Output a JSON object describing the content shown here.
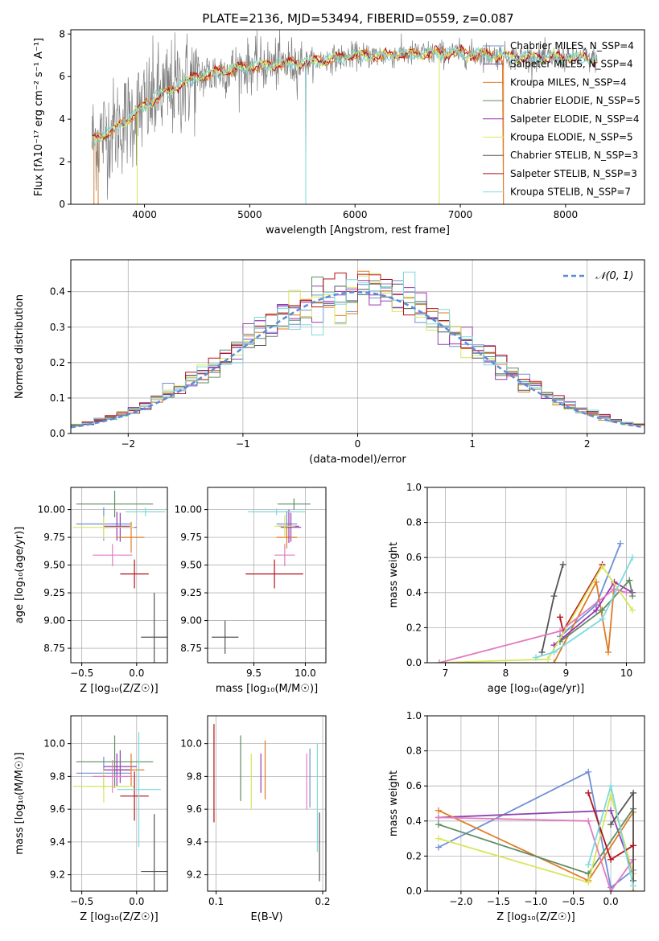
{
  "figure_title": "PLATE=2136, MJD=53494, FIBERID=0559, z=0.087",
  "colors": {
    "chabrier_miles": "#6f8fd6",
    "salpeter_miles": "#8e44ad",
    "kroupa_miles": "#e07b24",
    "chabrier_elodie": "#5e8c61",
    "salpeter_elodie": "#9b35b0",
    "kroupa_elodie": "#d8e65a",
    "chabrier_stelib": "#555555",
    "salpeter_stelib": "#b5121b",
    "kroupa_stelib": "#7fd9dd",
    "pink": "#e07cc0",
    "data_grey": "#808080",
    "normal_curve": "#5b8bd8"
  },
  "chart_data": [
    {
      "id": "spectrum",
      "type": "line",
      "xlabel": "wavelength [Angstrom, rest frame]",
      "ylabel": "Flux [fλ10⁻¹⁷ erg cm⁻² s⁻¹ A⁻¹]",
      "xlim": [
        3300,
        8750
      ],
      "ylim": [
        0,
        8.2
      ],
      "xticks": [
        4000,
        5000,
        6000,
        7000,
        8000
      ],
      "yticks": [
        0,
        2,
        4,
        6,
        8
      ],
      "legend_position": "right",
      "series": [
        {
          "name": "Chabrier MILES, N_SSP=4",
          "color_key": "chabrier_miles"
        },
        {
          "name": "Salpeter MILES, N_SSP=4",
          "color_key": "salpeter_miles"
        },
        {
          "name": "Kroupa MILES, N_SSP=4",
          "color_key": "kroupa_miles"
        },
        {
          "name": "Chabrier ELODIE, N_SSP=5",
          "color_key": "chabrier_elodie"
        },
        {
          "name": "Salpeter ELODIE, N_SSP=4",
          "color_key": "salpeter_elodie"
        },
        {
          "name": "Kroupa ELODIE, N_SSP=5",
          "color_key": "kroupa_elodie"
        },
        {
          "name": "Chabrier STELIB, N_SSP=3",
          "color_key": "chabrier_stelib"
        },
        {
          "name": "Salpeter STELIB, N_SSP=3",
          "color_key": "salpeter_stelib"
        },
        {
          "name": "Kroupa STELIB, N_SSP=7",
          "color_key": "kroupa_stelib"
        }
      ],
      "continuum": {
        "x": [
          3500,
          3700,
          3900,
          4000,
          4100,
          4300,
          4500,
          4800,
          5000,
          5300,
          5600,
          6000,
          6300,
          6700,
          7000,
          7300,
          7600,
          8000,
          8300
        ],
        "y": [
          3.0,
          3.5,
          4.2,
          4.6,
          5.0,
          5.5,
          6.0,
          6.3,
          6.5,
          6.6,
          6.7,
          7.0,
          7.0,
          7.1,
          7.1,
          7.0,
          6.9,
          6.9,
          6.8
        ]
      }
    },
    {
      "id": "residuals",
      "type": "area",
      "xlabel": "(data-model)/error",
      "ylabel": "Normed distribution",
      "xlim": [
        -2.5,
        2.5
      ],
      "ylim": [
        0,
        0.49
      ],
      "xticks": [
        -2,
        -1,
        0,
        1,
        2
      ],
      "yticks": [
        0.0,
        0.1,
        0.2,
        0.3,
        0.4
      ],
      "grid": true,
      "legend_position": "top-right",
      "reference_curve": "𝒩(0, 1)",
      "bin_width": 0.1
    },
    {
      "id": "age_vs_Z",
      "type": "scatter",
      "xlabel": "Z [log₁₀(Z/Z☉)]",
      "ylabel": "age  [log₁₀(age/yr)]",
      "xlim": [
        -0.6,
        0.28
      ],
      "ylim": [
        8.62,
        10.2
      ],
      "xticks": [
        -0.5,
        0.0
      ],
      "yticks": [
        8.75,
        9.0,
        9.25,
        9.5,
        9.75,
        10.0
      ],
      "grid": true,
      "points": [
        {
          "x": -0.3,
          "y": 9.87,
          "xerr": 0.25,
          "yerr": 0.15,
          "color_key": "chabrier_miles"
        },
        {
          "x": -0.15,
          "y": 9.84,
          "xerr": 0.15,
          "yerr": 0.13,
          "color_key": "salpeter_miles"
        },
        {
          "x": -0.05,
          "y": 9.75,
          "xerr": 0.12,
          "yerr": 0.14,
          "color_key": "kroupa_miles"
        },
        {
          "x": -0.2,
          "y": 10.05,
          "xerr": 0.35,
          "yerr": 0.12,
          "color_key": "chabrier_elodie"
        },
        {
          "x": -0.18,
          "y": 9.85,
          "xerr": 0.12,
          "yerr": 0.13,
          "color_key": "salpeter_elodie"
        },
        {
          "x": -0.3,
          "y": 9.84,
          "xerr": 0.28,
          "yerr": 0.1,
          "color_key": "kroupa_elodie"
        },
        {
          "x": 0.16,
          "y": 8.85,
          "xerr": 0.12,
          "yerr": 0.4,
          "color_key": "chabrier_stelib"
        },
        {
          "x": -0.02,
          "y": 9.42,
          "xerr": 0.13,
          "yerr": 0.13,
          "color_key": "salpeter_stelib"
        },
        {
          "x": 0.08,
          "y": 9.98,
          "xerr": 0.18,
          "yerr": 0.04,
          "color_key": "kroupa_stelib"
        },
        {
          "x": -0.22,
          "y": 9.59,
          "xerr": 0.18,
          "yerr": 0.1,
          "color_key": "pink"
        }
      ]
    },
    {
      "id": "age_vs_mass",
      "type": "scatter",
      "xlabel": "mass [log₁₀(M/M☉)]",
      "ylabel": "",
      "xlim": [
        9.05,
        10.2
      ],
      "ylim": [
        8.62,
        10.2
      ],
      "xticks": [
        9.5,
        10.0
      ],
      "yticks": [
        8.75,
        9.0,
        9.25,
        9.5,
        9.75,
        10.0
      ],
      "grid": true,
      "points": [
        {
          "x": 9.82,
          "y": 9.87,
          "xerr": 0.1,
          "yerr": 0.12,
          "color_key": "chabrier_miles"
        },
        {
          "x": 9.86,
          "y": 9.84,
          "xerr": 0.1,
          "yerr": 0.13,
          "color_key": "salpeter_miles"
        },
        {
          "x": 9.82,
          "y": 9.75,
          "xerr": 0.1,
          "yerr": 0.1,
          "color_key": "kroupa_miles"
        },
        {
          "x": 9.89,
          "y": 10.05,
          "xerr": 0.16,
          "yerr": 0.05,
          "color_key": "chabrier_elodie"
        },
        {
          "x": 9.84,
          "y": 9.85,
          "xerr": 0.1,
          "yerr": 0.15,
          "color_key": "salpeter_elodie"
        },
        {
          "x": 9.8,
          "y": 9.85,
          "xerr": 0.1,
          "yerr": 0.1,
          "color_key": "kroupa_elodie"
        },
        {
          "x": 9.22,
          "y": 8.85,
          "xerr": 0.13,
          "yerr": 0.15,
          "color_key": "chabrier_stelib"
        },
        {
          "x": 9.7,
          "y": 9.42,
          "xerr": 0.28,
          "yerr": 0.13,
          "color_key": "salpeter_stelib"
        },
        {
          "x": 9.72,
          "y": 9.98,
          "xerr": 0.28,
          "yerr": 0.03,
          "color_key": "kroupa_stelib"
        },
        {
          "x": 9.8,
          "y": 9.59,
          "xerr": 0.1,
          "yerr": 0.1,
          "color_key": "pink"
        }
      ]
    },
    {
      "id": "weight_vs_age",
      "type": "line",
      "xlabel": "age  [log₁₀(age/yr)]",
      "ylabel": "mass weight",
      "xlim": [
        6.7,
        10.3
      ],
      "ylim": [
        0.0,
        1.0
      ],
      "xticks": [
        7,
        8,
        9,
        10
      ],
      "yticks": [
        0.0,
        0.2,
        0.4,
        0.6,
        0.8,
        1.0
      ],
      "grid": true,
      "series": [
        {
          "color_key": "chabrier_stelib",
          "x": [
            8.6,
            8.8,
            8.95
          ],
          "y": [
            0.06,
            0.38,
            0.56
          ]
        },
        {
          "color_key": "salpeter_stelib",
          "x": [
            8.9,
            8.95,
            9.6
          ],
          "y": [
            0.26,
            0.18,
            0.56
          ]
        },
        {
          "color_key": "chabrier_miles",
          "x": [
            8.9,
            9.5,
            9.9
          ],
          "y": [
            0.15,
            0.33,
            0.68
          ]
        },
        {
          "color_key": "kroupa_miles",
          "x": [
            8.8,
            9.5,
            9.7,
            9.8
          ],
          "y": [
            0.0,
            0.46,
            0.06,
            0.45
          ]
        },
        {
          "color_key": "salpeter_elodie",
          "x": [
            8.8,
            9.5,
            9.8,
            10.1
          ],
          "y": [
            0.1,
            0.3,
            0.46,
            0.4
          ]
        },
        {
          "color_key": "chabrier_elodie",
          "x": [
            8.9,
            9.6,
            10.05,
            10.1
          ],
          "y": [
            0.12,
            0.3,
            0.47,
            0.38
          ]
        },
        {
          "color_key": "kroupa_elodie",
          "x": [
            6.9,
            8.7,
            9.6,
            10.1
          ],
          "y": [
            0.0,
            0.02,
            0.55,
            0.3
          ]
        },
        {
          "color_key": "pink",
          "x": [
            6.9,
            8.9,
            9.8,
            10.0
          ],
          "y": [
            0.0,
            0.18,
            0.42,
            0.4
          ]
        },
        {
          "color_key": "kroupa_stelib",
          "x": [
            8.5,
            8.8,
            9.6,
            10.1
          ],
          "y": [
            0.03,
            0.06,
            0.25,
            0.6
          ]
        }
      ]
    },
    {
      "id": "mass_vs_Z",
      "type": "scatter",
      "xlabel": "Z [log₁₀(Z/Z☉)]",
      "ylabel": "mass [log₁₀(M/M☉)]",
      "xlim": [
        -0.6,
        0.28
      ],
      "ylim": [
        9.1,
        10.17
      ],
      "xticks": [
        -0.5,
        0.0
      ],
      "yticks": [
        9.2,
        9.4,
        9.6,
        9.8,
        10.0
      ],
      "grid": true,
      "points": [
        {
          "x": -0.3,
          "y": 9.82,
          "xerr": 0.25,
          "yerr": 0.1,
          "color_key": "chabrier_miles"
        },
        {
          "x": -0.15,
          "y": 9.86,
          "xerr": 0.15,
          "yerr": 0.1,
          "color_key": "salpeter_miles"
        },
        {
          "x": -0.05,
          "y": 9.84,
          "xerr": 0.12,
          "yerr": 0.1,
          "color_key": "kroupa_miles"
        },
        {
          "x": -0.2,
          "y": 9.89,
          "xerr": 0.35,
          "yerr": 0.16,
          "color_key": "chabrier_elodie"
        },
        {
          "x": -0.18,
          "y": 9.84,
          "xerr": 0.12,
          "yerr": 0.1,
          "color_key": "salpeter_elodie"
        },
        {
          "x": -0.3,
          "y": 9.74,
          "xerr": 0.28,
          "yerr": 0.1,
          "color_key": "kroupa_elodie"
        },
        {
          "x": 0.16,
          "y": 9.22,
          "xerr": 0.12,
          "yerr": 0.35,
          "color_key": "chabrier_stelib"
        },
        {
          "x": -0.02,
          "y": 9.68,
          "xerr": 0.13,
          "yerr": 0.15,
          "color_key": "salpeter_stelib"
        },
        {
          "x": 0.02,
          "y": 9.72,
          "xerr": 0.2,
          "yerr": 0.35,
          "color_key": "kroupa_stelib"
        },
        {
          "x": -0.22,
          "y": 9.8,
          "xerr": 0.18,
          "yerr": 0.1,
          "color_key": "pink"
        }
      ]
    },
    {
      "id": "mass_vs_EBV",
      "type": "scatter",
      "xlabel": "E(B-V)",
      "ylabel": "",
      "xlim": [
        0.092,
        0.203
      ],
      "ylim": [
        9.1,
        10.17
      ],
      "xticks": [
        0.1,
        0.2
      ],
      "yticks": [
        9.2,
        9.4,
        9.6,
        9.8,
        10.0
      ],
      "grid": true,
      "points": [
        {
          "x": 0.098,
          "y": 9.82,
          "yerr": 0.3,
          "color_key": "salpeter_stelib"
        },
        {
          "x": 0.123,
          "y": 9.85,
          "yerr": 0.2,
          "color_key": "chabrier_elodie"
        },
        {
          "x": 0.133,
          "y": 9.77,
          "yerr": 0.17,
          "color_key": "kroupa_elodie"
        },
        {
          "x": 0.142,
          "y": 9.82,
          "yerr": 0.12,
          "color_key": "salpeter_elodie"
        },
        {
          "x": 0.146,
          "y": 9.84,
          "yerr": 0.18,
          "color_key": "kroupa_miles"
        },
        {
          "x": 0.185,
          "y": 9.77,
          "yerr": 0.17,
          "color_key": "pink"
        },
        {
          "x": 0.188,
          "y": 9.79,
          "yerr": 0.18,
          "color_key": "chabrier_miles"
        },
        {
          "x": 0.195,
          "y": 9.67,
          "yerr": 0.33,
          "color_key": "kroupa_stelib"
        },
        {
          "x": 0.197,
          "y": 9.37,
          "yerr": 0.21,
          "color_key": "chabrier_stelib"
        }
      ]
    },
    {
      "id": "weight_vs_Z",
      "type": "line",
      "xlabel": "Z [log₁₀(Z/Z☉)]",
      "ylabel": "mass weight",
      "xlim": [
        -2.45,
        0.45
      ],
      "ylim": [
        0.0,
        1.0
      ],
      "xticks": [
        -2.0,
        -1.5,
        -1.0,
        -0.5,
        0.0
      ],
      "yticks": [
        0.0,
        0.2,
        0.4,
        0.6,
        0.8,
        1.0
      ],
      "grid": true,
      "series": [
        {
          "color_key": "chabrier_miles",
          "x": [
            -2.3,
            -0.3,
            0.0,
            0.3
          ],
          "y": [
            0.25,
            0.68,
            0.02,
            0.12
          ]
        },
        {
          "color_key": "salpeter_miles",
          "x": [
            -2.3,
            0.0,
            0.3
          ],
          "y": [
            0.42,
            0.46,
            0.1
          ]
        },
        {
          "color_key": "kroupa_miles",
          "x": [
            -2.3,
            -0.3,
            0.3,
            0.3
          ],
          "y": [
            0.46,
            0.06,
            0.45,
            0.0
          ]
        },
        {
          "color_key": "chabrier_elodie",
          "x": [
            -2.3,
            -0.3,
            0.3
          ],
          "y": [
            0.38,
            0.1,
            0.47
          ]
        },
        {
          "color_key": "kroupa_elodie",
          "x": [
            -2.3,
            -0.3,
            0.0,
            0.3
          ],
          "y": [
            0.3,
            0.05,
            0.55,
            0.1
          ]
        },
        {
          "color_key": "pink",
          "x": [
            -2.3,
            -0.3,
            0.0,
            0.3
          ],
          "y": [
            0.42,
            0.4,
            0.0,
            0.18
          ]
        },
        {
          "color_key": "chabrier_stelib",
          "x": [
            -0.0,
            0.3,
            0.3
          ],
          "y": [
            0.38,
            0.56,
            0.06
          ]
        },
        {
          "color_key": "salpeter_stelib",
          "x": [
            -0.3,
            0.0,
            0.3
          ],
          "y": [
            0.56,
            0.18,
            0.26
          ]
        },
        {
          "color_key": "kroupa_stelib",
          "x": [
            -0.3,
            0.0,
            0.3
          ],
          "y": [
            0.15,
            0.6,
            0.03
          ]
        }
      ]
    }
  ]
}
